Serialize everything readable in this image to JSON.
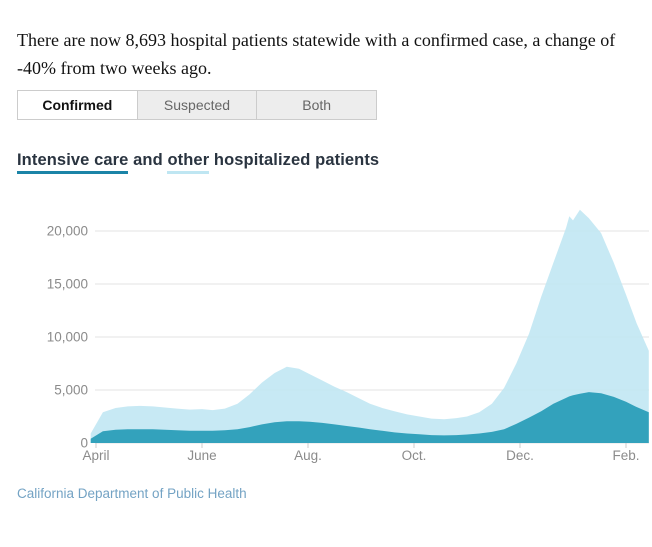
{
  "headline": "There are now 8,693 hospital patients statewide with a confirmed case, a change of -40% from two weeks ago.",
  "stats": {
    "current_confirmed_patients": "8,693",
    "two_week_change": "-40%"
  },
  "tabs": [
    {
      "label": "Confirmed",
      "selected": true
    },
    {
      "label": "Suspected",
      "selected": false
    },
    {
      "label": "Both",
      "selected": false
    }
  ],
  "legend": {
    "intensive_care": "Intensive care",
    "and": " and ",
    "other": "other",
    "rest": " hospitalized patients"
  },
  "source": "California Department of Public Health",
  "colors": {
    "intensive_care_accent": "#1b84a7",
    "intensive_care_fill": "#33a2bc",
    "other_fill": "#bfe6f2",
    "source_link": "#74a3c4"
  },
  "chart_data": {
    "type": "area",
    "stacked": true,
    "title": "Intensive care and other hospitalized patients",
    "xlabel": "",
    "ylabel": "",
    "x_unit": "months since April 2020 tick (April = 0, one month = 1)",
    "ylim": [
      0,
      22500
    ],
    "y_ticks": [
      0,
      5000,
      10000,
      15000,
      20000
    ],
    "x_ticks": [
      {
        "t": 0,
        "label": "April"
      },
      {
        "t": 2,
        "label": "June"
      },
      {
        "t": 4,
        "label": "Aug."
      },
      {
        "t": 6,
        "label": "Oct."
      },
      {
        "t": 8,
        "label": "Dec."
      },
      {
        "t": 10,
        "label": "Feb."
      }
    ],
    "x": [
      -0.1,
      0.13,
      0.37,
      0.6,
      0.83,
      1.07,
      1.3,
      1.53,
      1.77,
      2.0,
      2.2,
      2.43,
      2.67,
      2.9,
      3.13,
      3.37,
      3.6,
      3.83,
      4.03,
      4.27,
      4.5,
      4.73,
      4.97,
      5.17,
      5.4,
      5.63,
      5.87,
      6.1,
      6.33,
      6.57,
      6.8,
      7.0,
      7.23,
      7.47,
      7.7,
      7.93,
      8.17,
      8.4,
      8.63,
      8.87,
      8.93,
      9.0,
      9.13,
      9.3,
      9.53,
      9.77,
      10.0,
      10.2,
      10.43
    ],
    "series": [
      {
        "name": "Intensive care",
        "color": "#33a2bc",
        "fill_opacity": 1,
        "values": [
          400,
          1100,
          1250,
          1300,
          1300,
          1300,
          1250,
          1200,
          1150,
          1150,
          1150,
          1200,
          1300,
          1500,
          1750,
          1950,
          2050,
          2050,
          2000,
          1900,
          1750,
          1600,
          1450,
          1300,
          1150,
          1000,
          900,
          820,
          750,
          720,
          750,
          800,
          900,
          1050,
          1300,
          1800,
          2400,
          3000,
          3700,
          4250,
          4400,
          4500,
          4650,
          4800,
          4700,
          4350,
          3900,
          3400,
          2900
        ]
      },
      {
        "name": "Other hospitalized",
        "color": "#bfe6f2",
        "fill_opacity": 0.88,
        "values": [
          500,
          1800,
          2050,
          2150,
          2200,
          2150,
          2100,
          2050,
          2000,
          2050,
          1950,
          2050,
          2400,
          3100,
          3950,
          4650,
          5150,
          4950,
          4500,
          4000,
          3550,
          3200,
          2750,
          2400,
          2150,
          2000,
          1800,
          1680,
          1550,
          1530,
          1600,
          1700,
          2000,
          2650,
          3900,
          5700,
          7900,
          10800,
          13300,
          16050,
          17000,
          16500,
          17350,
          16400,
          15100,
          12650,
          10100,
          7900,
          5800
        ]
      }
    ],
    "style": {
      "grid_color": "#e3e3e3",
      "axis_label_color": "#8b8b8b",
      "tick_color": "#cccccc",
      "grid_on": true,
      "legend_position": "title-inline"
    }
  }
}
